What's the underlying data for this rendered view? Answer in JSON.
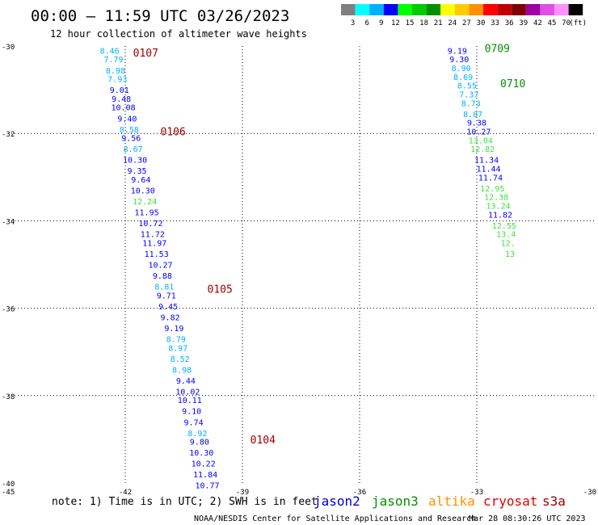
{
  "header": {
    "title": "00:00 – 11:59 UTC 03/26/2023",
    "subtitle": "12 hour collection of altimeter wave heights"
  },
  "legend_scale": {
    "colors": [
      "#808080",
      "#00ffff",
      "#00b0ff",
      "#0000ff",
      "#00ff00",
      "#00cc00",
      "#009000",
      "#ffff00",
      "#ffcc00",
      "#ff9000",
      "#ff0000",
      "#c00000",
      "#800000",
      "#a000a0",
      "#e050e0",
      "#ff90ff",
      "#000000"
    ],
    "labels": [
      "3",
      "6",
      "9",
      "12",
      "15",
      "18",
      "21",
      "24",
      "27",
      "30",
      "33",
      "36",
      "39",
      "42",
      "45",
      "70",
      "(ft)"
    ]
  },
  "footer": {
    "note": "note: 1) Time is in UTC; 2) SWH is in feet",
    "credit": "NOAA/NESDIS Center for Satellite Applications and Research",
    "timestamp": "Mar 28 08:30:26 UTC 2023"
  },
  "satellites": [
    {
      "name": "jason2",
      "color": "#0000d0"
    },
    {
      "name": "jason3",
      "color": "#009000"
    },
    {
      "name": "altika",
      "color": "#ff9000"
    },
    {
      "name": "cryosat",
      "color": "#e00000"
    },
    {
      "name": "s3a",
      "color": "#a00000"
    }
  ],
  "chart_data": {
    "type": "scatter",
    "xlabel": "",
    "ylabel": "",
    "xlim": [
      -45,
      -30
    ],
    "ylim": [
      -40,
      -30
    ],
    "x_ticks": [
      "-45",
      "-42",
      "-39",
      "-36",
      "-33",
      "-30"
    ],
    "y_ticks": [
      "-30",
      "-32",
      "-34",
      "-36",
      "-38",
      "-40"
    ],
    "grid": true,
    "tracks": [
      {
        "points": [
          {
            "lon": -42.4,
            "lat": -30.1,
            "swh": "8.46",
            "color": "#00b0ff"
          },
          {
            "lon": -42.3,
            "lat": -30.3,
            "swh": "7.79",
            "color": "#00b0ff"
          },
          {
            "lon": -42.25,
            "lat": -30.55,
            "swh": "8.98",
            "color": "#00b0ff"
          },
          {
            "lon": -42.2,
            "lat": -30.75,
            "swh": "7.93",
            "color": "#00b0ff"
          },
          {
            "lon": -42.15,
            "lat": -31.0,
            "swh": "9.01",
            "color": "#0000ff"
          },
          {
            "lon": -42.1,
            "lat": -31.2,
            "swh": "9.48",
            "color": "#0000ff"
          },
          {
            "lon": -42.05,
            "lat": -31.4,
            "swh": "10.08",
            "color": "#0000ff"
          },
          {
            "lon": -41.95,
            "lat": -31.65,
            "swh": "9.40",
            "color": "#0000ff"
          },
          {
            "lon": -41.9,
            "lat": -31.9,
            "swh": "8.58",
            "color": "#00b0ff"
          },
          {
            "lon": -41.85,
            "lat": -32.1,
            "swh": "9.56",
            "color": "#0000ff"
          },
          {
            "lon": -41.8,
            "lat": -32.35,
            "swh": "8.67",
            "color": "#00b0ff"
          },
          {
            "lon": -41.75,
            "lat": -32.6,
            "swh": "10.30",
            "color": "#0000ff"
          },
          {
            "lon": -41.7,
            "lat": -32.85,
            "swh": "9.35",
            "color": "#0000ff"
          },
          {
            "lon": -41.6,
            "lat": -33.05,
            "swh": "9.64",
            "color": "#0000ff"
          },
          {
            "lon": -41.55,
            "lat": -33.3,
            "swh": "10.30",
            "color": "#0000ff"
          },
          {
            "lon": -41.5,
            "lat": -33.55,
            "swh": "12.24",
            "color": "#40e040"
          },
          {
            "lon": -41.45,
            "lat": -33.8,
            "swh": "11.95",
            "color": "#0000ff"
          },
          {
            "lon": -41.35,
            "lat": -34.05,
            "swh": "10.72",
            "color": "#0000ff"
          },
          {
            "lon": -41.3,
            "lat": -34.3,
            "swh": "11.72",
            "color": "#0000ff"
          },
          {
            "lon": -41.25,
            "lat": -34.5,
            "swh": "11.97",
            "color": "#0000ff"
          },
          {
            "lon": -41.2,
            "lat": -34.75,
            "swh": "11.53",
            "color": "#0000ff"
          },
          {
            "lon": -41.1,
            "lat": -35.0,
            "swh": "10.27",
            "color": "#0000ff"
          },
          {
            "lon": -41.05,
            "lat": -35.25,
            "swh": "9.88",
            "color": "#0000ff"
          },
          {
            "lon": -41.0,
            "lat": -35.5,
            "swh": "8.81",
            "color": "#00b0ff"
          },
          {
            "lon": -40.95,
            "lat": -35.7,
            "swh": "9.71",
            "color": "#0000ff"
          },
          {
            "lon": -40.9,
            "lat": -35.95,
            "swh": "9.45",
            "color": "#0000ff"
          },
          {
            "lon": -40.85,
            "lat": -36.2,
            "swh": "9.82",
            "color": "#0000ff"
          },
          {
            "lon": -40.75,
            "lat": -36.45,
            "swh": "9.19",
            "color": "#0000ff"
          },
          {
            "lon": -40.7,
            "lat": -36.7,
            "swh": "8.79",
            "color": "#00b0ff"
          },
          {
            "lon": -40.65,
            "lat": -36.9,
            "swh": "8.97",
            "color": "#00b0ff"
          },
          {
            "lon": -40.6,
            "lat": -37.15,
            "swh": "8.52",
            "color": "#00b0ff"
          },
          {
            "lon": -40.55,
            "lat": -37.4,
            "swh": "8.98",
            "color": "#00b0ff"
          },
          {
            "lon": -40.45,
            "lat": -37.65,
            "swh": "9.44",
            "color": "#0000ff"
          },
          {
            "lon": -40.4,
            "lat": -37.9,
            "swh": "10.02",
            "color": "#0000ff"
          },
          {
            "lon": -40.35,
            "lat": -38.1,
            "swh": "10.11",
            "color": "#0000ff"
          },
          {
            "lon": -40.3,
            "lat": -38.35,
            "swh": "9.10",
            "color": "#0000ff"
          },
          {
            "lon": -40.25,
            "lat": -38.6,
            "swh": "9.74",
            "color": "#0000ff"
          },
          {
            "lon": -40.15,
            "lat": -38.85,
            "swh": "8.92",
            "color": "#00b0ff"
          },
          {
            "lon": -40.1,
            "lat": -39.05,
            "swh": "9.80",
            "color": "#0000ff"
          },
          {
            "lon": -40.05,
            "lat": -39.3,
            "swh": "10.30",
            "color": "#0000ff"
          },
          {
            "lon": -40.0,
            "lat": -39.55,
            "swh": "10.22",
            "color": "#0000ff"
          },
          {
            "lon": -39.95,
            "lat": -39.8,
            "swh": "11.84",
            "color": "#0000ff"
          },
          {
            "lon": -39.9,
            "lat": -40.05,
            "swh": "10.77",
            "color": "#0000ff"
          }
        ]
      },
      {
        "points": [
          {
            "lon": -33.5,
            "lat": -30.1,
            "swh": "9.19",
            "color": "#0000ff"
          },
          {
            "lon": -33.45,
            "lat": -30.3,
            "swh": "9.30",
            "color": "#0000ff"
          },
          {
            "lon": -33.4,
            "lat": -30.5,
            "swh": "8.90",
            "color": "#00b0ff"
          },
          {
            "lon": -33.35,
            "lat": -30.7,
            "swh": "8.69",
            "color": "#00b0ff"
          },
          {
            "lon": -33.25,
            "lat": -30.9,
            "swh": "8.55",
            "color": "#00b0ff"
          },
          {
            "lon": -33.2,
            "lat": -31.1,
            "swh": "7.37",
            "color": "#00b0ff"
          },
          {
            "lon": -33.15,
            "lat": -31.3,
            "swh": "8.73",
            "color": "#00b0ff"
          },
          {
            "lon": -33.1,
            "lat": -31.55,
            "swh": "8.87",
            "color": "#00b0ff"
          },
          {
            "lon": -33.0,
            "lat": -31.75,
            "swh": "9.38",
            "color": "#0000ff"
          },
          {
            "lon": -32.95,
            "lat": -31.95,
            "swh": "10.27",
            "color": "#0000ff"
          },
          {
            "lon": -32.9,
            "lat": -32.15,
            "swh": "13.04",
            "color": "#40e040"
          },
          {
            "lon": -32.85,
            "lat": -32.35,
            "swh": "12.82",
            "color": "#40e040"
          },
          {
            "lon": -32.75,
            "lat": -32.6,
            "swh": "11.34",
            "color": "#0000ff"
          },
          {
            "lon": -32.7,
            "lat": -32.8,
            "swh": "11.44",
            "color": "#0000ff"
          },
          {
            "lon": -32.65,
            "lat": -33.0,
            "swh": "11.74",
            "color": "#0000ff"
          },
          {
            "lon": -32.6,
            "lat": -33.25,
            "swh": "12.95",
            "color": "#40e040"
          },
          {
            "lon": -32.5,
            "lat": -33.45,
            "swh": "12.38",
            "color": "#40e040"
          },
          {
            "lon": -32.45,
            "lat": -33.65,
            "swh": "13.24",
            "color": "#40e040"
          },
          {
            "lon": -32.4,
            "lat": -33.85,
            "swh": "11.82",
            "color": "#0000ff"
          },
          {
            "lon": -32.3,
            "lat": -34.1,
            "swh": "12.55",
            "color": "#40e040"
          },
          {
            "lon": -32.25,
            "lat": -34.3,
            "swh": "13.4",
            "color": "#40e040"
          },
          {
            "lon": -32.2,
            "lat": -34.5,
            "swh": "12.",
            "color": "#40e040"
          },
          {
            "lon": -32.15,
            "lat": -34.75,
            "swh": "13",
            "color": "#40e040"
          }
        ]
      }
    ],
    "time_labels": [
      {
        "text": "0107",
        "lon": -41.8,
        "lat": -30.15,
        "color": "#a00000"
      },
      {
        "text": "0106",
        "lon": -41.1,
        "lat": -31.95,
        "color": "#a00000"
      },
      {
        "text": "0105",
        "lon": -39.9,
        "lat": -35.55,
        "color": "#a00000"
      },
      {
        "text": "0104",
        "lon": -38.8,
        "lat": -39.0,
        "color": "#a00000"
      },
      {
        "text": "0709",
        "lon": -32.8,
        "lat": -30.05,
        "color": "#009000"
      },
      {
        "text": "0710",
        "lon": -32.4,
        "lat": -30.85,
        "color": "#009000"
      }
    ]
  }
}
